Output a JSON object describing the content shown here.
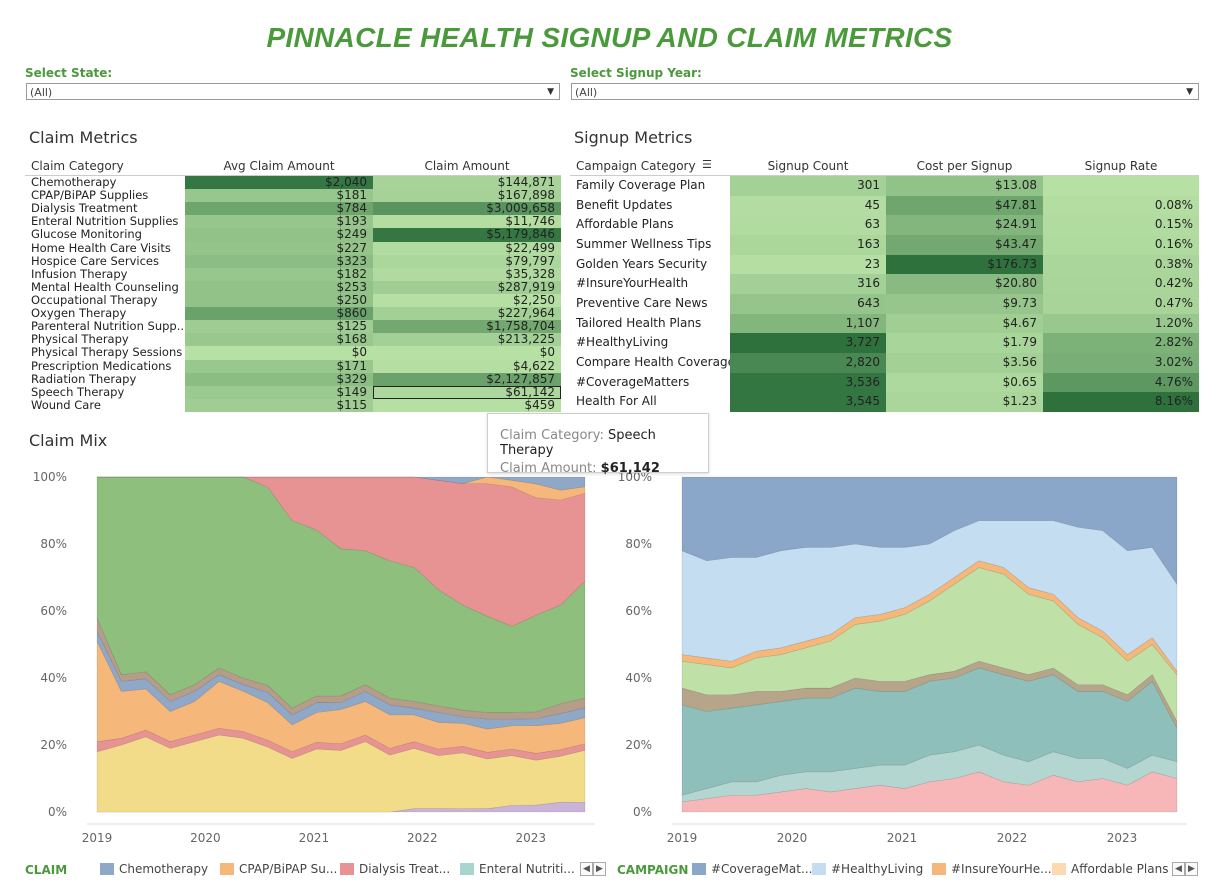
{
  "title": "PINNACLE HEALTH SIGNUP AND CLAIM METRICS",
  "filters": {
    "state_label": "Select State:",
    "state_value": "(All)",
    "year_label": "Select Signup Year:",
    "year_value": "(All)"
  },
  "claim_metrics": {
    "title": "Claim Metrics",
    "headers": [
      "Claim Category",
      "Avg Claim Amount",
      "Claim Amount"
    ],
    "rows": [
      {
        "category": "Chemotherapy",
        "avg": "$2,040",
        "amount": "$144,871",
        "avg_value": 2040,
        "amount_value": 144871
      },
      {
        "category": "CPAP/BiPAP Supplies",
        "avg": "$181",
        "amount": "$167,898",
        "avg_value": 181,
        "amount_value": 167898
      },
      {
        "category": "Dialysis Treatment",
        "avg": "$784",
        "amount": "$3,009,658",
        "avg_value": 784,
        "amount_value": 3009658
      },
      {
        "category": "Enteral Nutrition Supplies",
        "avg": "$193",
        "amount": "$11,746",
        "avg_value": 193,
        "amount_value": 11746
      },
      {
        "category": "Glucose Monitoring",
        "avg": "$249",
        "amount": "$5,179,846",
        "avg_value": 249,
        "amount_value": 5179846
      },
      {
        "category": "Home Health Care Visits",
        "avg": "$227",
        "amount": "$22,499",
        "avg_value": 227,
        "amount_value": 22499
      },
      {
        "category": "Hospice Care Services",
        "avg": "$323",
        "amount": "$79,797",
        "avg_value": 323,
        "amount_value": 79797
      },
      {
        "category": "Infusion Therapy",
        "avg": "$182",
        "amount": "$35,328",
        "avg_value": 182,
        "amount_value": 35328
      },
      {
        "category": "Mental Health Counseling",
        "avg": "$253",
        "amount": "$287,919",
        "avg_value": 253,
        "amount_value": 287919
      },
      {
        "category": "Occupational Therapy",
        "avg": "$250",
        "amount": "$2,250",
        "avg_value": 250,
        "amount_value": 2250
      },
      {
        "category": "Oxygen Therapy",
        "avg": "$860",
        "amount": "$227,964",
        "avg_value": 860,
        "amount_value": 227964
      },
      {
        "category": "Parenteral Nutrition Supp..",
        "avg": "$125",
        "amount": "$1,758,704",
        "avg_value": 125,
        "amount_value": 1758704
      },
      {
        "category": "Physical Therapy",
        "avg": "$168",
        "amount": "$213,225",
        "avg_value": 168,
        "amount_value": 213225
      },
      {
        "category": "Physical Therapy Sessions",
        "avg": "$0",
        "amount": "$0",
        "avg_value": 0,
        "amount_value": 0
      },
      {
        "category": "Prescription Medications",
        "avg": "$171",
        "amount": "$4,622",
        "avg_value": 171,
        "amount_value": 4622
      },
      {
        "category": "Radiation Therapy",
        "avg": "$329",
        "amount": "$2,127,857",
        "avg_value": 329,
        "amount_value": 2127857
      },
      {
        "category": "Speech Therapy",
        "avg": "$149",
        "amount": "$61,142",
        "avg_value": 149,
        "amount_value": 61142
      },
      {
        "category": "Wound Care",
        "avg": "$115",
        "amount": "$459",
        "avg_value": 115,
        "amount_value": 459
      }
    ]
  },
  "signup_metrics": {
    "title": "Signup Metrics",
    "headers": [
      "Campaign Category",
      "Signup Count",
      "Cost per Signup",
      "Signup Rate"
    ],
    "rows": [
      {
        "campaign": "Family Coverage Plan",
        "count": "301",
        "cost": "$13.08",
        "rate": "",
        "count_value": 301,
        "cost_value": 13.08,
        "rate_value": null
      },
      {
        "campaign": "Benefit Updates",
        "count": "45",
        "cost": "$47.81",
        "rate": "0.08%",
        "count_value": 45,
        "cost_value": 47.81,
        "rate_value": 0.08
      },
      {
        "campaign": "Affordable Plans",
        "count": "63",
        "cost": "$24.91",
        "rate": "0.15%",
        "count_value": 63,
        "cost_value": 24.91,
        "rate_value": 0.15
      },
      {
        "campaign": "Summer Wellness Tips",
        "count": "163",
        "cost": "$43.47",
        "rate": "0.16%",
        "count_value": 163,
        "cost_value": 43.47,
        "rate_value": 0.16
      },
      {
        "campaign": "Golden Years Security",
        "count": "23",
        "cost": "$176.73",
        "rate": "0.38%",
        "count_value": 23,
        "cost_value": 176.73,
        "rate_value": 0.38
      },
      {
        "campaign": "#InsureYourHealth",
        "count": "316",
        "cost": "$20.80",
        "rate": "0.42%",
        "count_value": 316,
        "cost_value": 20.8,
        "rate_value": 0.42
      },
      {
        "campaign": "Preventive Care News",
        "count": "643",
        "cost": "$9.73",
        "rate": "0.47%",
        "count_value": 643,
        "cost_value": 9.73,
        "rate_value": 0.47
      },
      {
        "campaign": "Tailored Health Plans",
        "count": "1,107",
        "cost": "$4.67",
        "rate": "1.20%",
        "count_value": 1107,
        "cost_value": 4.67,
        "rate_value": 1.2
      },
      {
        "campaign": "#HealthyLiving",
        "count": "3,727",
        "cost": "$1.79",
        "rate": "2.82%",
        "count_value": 3727,
        "cost_value": 1.79,
        "rate_value": 2.82
      },
      {
        "campaign": "Compare Health Coverage",
        "count": "2,820",
        "cost": "$3.56",
        "rate": "3.02%",
        "count_value": 2820,
        "cost_value": 3.56,
        "rate_value": 3.02
      },
      {
        "campaign": "#CoverageMatters",
        "count": "3,536",
        "cost": "$0.65",
        "rate": "4.76%",
        "count_value": 3536,
        "cost_value": 0.65,
        "rate_value": 4.76
      },
      {
        "campaign": "Health For All",
        "count": "3,545",
        "cost": "$1.23",
        "rate": "8.16%",
        "count_value": 3545,
        "cost_value": 1.23,
        "rate_value": 8.16
      }
    ]
  },
  "tooltip": {
    "cat_key": "Claim Category:",
    "cat_val": "Speech Therapy",
    "amt_key": "Claim Amount:",
    "amt_val": "$61,142"
  },
  "claim_mix": {
    "title": "Claim Mix",
    "legend_title": "CLAIM",
    "legend": [
      {
        "label": "Chemotherapy",
        "color": "#8fa8c8"
      },
      {
        "label": "CPAP/BiPAP Su...",
        "color": "#f5b87a"
      },
      {
        "label": "Dialysis Treat...",
        "color": "#e89393"
      },
      {
        "label": "Enteral Nutriti...",
        "color": "#a8d5d0"
      }
    ]
  },
  "campaign_legend": {
    "legend_title": "CAMPAIGN",
    "legend": [
      {
        "label": "#CoverageMat...",
        "color": "#8aa7c9"
      },
      {
        "label": "#HealthyLiving",
        "color": "#c4ddf0"
      },
      {
        "label": "#InsureYourHe...",
        "color": "#f5b87a"
      },
      {
        "label": "Affordable Plans",
        "color": "#fdd9b0"
      }
    ]
  },
  "chart_data": [
    {
      "type": "area",
      "title": "Claim Mix",
      "x_ticks": [
        "2019",
        "2020",
        "2021",
        "2022",
        "2023"
      ],
      "y_ticks": [
        "0%",
        "20%",
        "40%",
        "60%",
        "80%",
        "100%"
      ],
      "ylim": [
        0,
        100
      ],
      "stacked_percent": true,
      "series": [
        {
          "name": "Chemotherapy",
          "color": "#8fa8c8"
        },
        {
          "name": "CPAP/BiPAP Su...",
          "color": "#f5b87a"
        },
        {
          "name": "Dialysis Treat...",
          "color": "#e89393"
        },
        {
          "name": "Enteral Nutriti...",
          "color": "#a8d5d0"
        }
      ],
      "bands": [
        {
          "color": "#c9b3d8",
          "values": [
            0,
            0,
            0,
            0,
            0,
            0,
            0,
            0,
            0,
            0,
            0,
            0,
            0,
            1,
            1,
            1,
            1,
            2,
            2,
            3,
            3
          ]
        },
        {
          "color": "#f2dc8a",
          "values": [
            18,
            20,
            22,
            19,
            21,
            23,
            22,
            19,
            16,
            19,
            18,
            21,
            17,
            18,
            16,
            17,
            15,
            15,
            13,
            14,
            16
          ]
        },
        {
          "color": "#e89393",
          "values": [
            3,
            2,
            2,
            2,
            2,
            2,
            2,
            2,
            2,
            2,
            2,
            2,
            2,
            2,
            2,
            2,
            2,
            2,
            2,
            2,
            2
          ]
        },
        {
          "color": "#f5b87a",
          "values": [
            30,
            14,
            12,
            9,
            10,
            14,
            12,
            11,
            8,
            9,
            10,
            10,
            10,
            8,
            8,
            7,
            7,
            7,
            8,
            8,
            8
          ]
        },
        {
          "color": "#8fa8c8",
          "values": [
            3,
            3,
            3,
            3,
            3,
            2,
            2,
            3,
            3,
            3,
            2,
            3,
            3,
            2,
            3,
            2,
            3,
            2,
            2,
            3,
            3
          ]
        },
        {
          "color": "#b59d8a",
          "values": [
            4,
            2,
            2,
            2,
            2,
            2,
            2,
            2,
            2,
            2,
            2,
            2,
            2,
            2,
            2,
            2,
            2,
            2,
            2,
            3,
            3
          ]
        },
        {
          "color": "#8fbf7c",
          "values": [
            42,
            59,
            57,
            65,
            62,
            57,
            60,
            58,
            56,
            50,
            43,
            40,
            41,
            40,
            35,
            32,
            29,
            26,
            28,
            30,
            36
          ]
        },
        {
          "color": "#e89393",
          "values": [
            0,
            0,
            0,
            0,
            0,
            0,
            0,
            3,
            13,
            16,
            21,
            22,
            25,
            27,
            33,
            37,
            40,
            42,
            34,
            32,
            27
          ]
        },
        {
          "color": "#f5b87a",
          "values": [
            0,
            0,
            0,
            0,
            0,
            0,
            0,
            0,
            0,
            0,
            0,
            0,
            0,
            0,
            0,
            0,
            2,
            2,
            4,
            3,
            2
          ]
        },
        {
          "color": "#8fa8c8",
          "values": [
            0,
            0,
            0,
            0,
            0,
            0,
            0,
            0,
            0,
            0,
            0,
            0,
            0,
            0,
            1,
            2,
            0,
            1,
            2,
            4,
            3
          ]
        }
      ]
    },
    {
      "type": "area",
      "title": "",
      "x_ticks": [
        "2019",
        "2020",
        "2021",
        "2022",
        "2023"
      ],
      "y_ticks": [
        "0%",
        "20%",
        "40%",
        "60%",
        "80%",
        "100%"
      ],
      "ylim": [
        0,
        100
      ],
      "stacked_percent": true,
      "series": [
        {
          "name": "#CoverageMat...",
          "color": "#8aa7c9"
        },
        {
          "name": "#HealthyLiving",
          "color": "#c4ddf0"
        },
        {
          "name": "#InsureYourHe...",
          "color": "#f5b87a"
        },
        {
          "name": "Affordable Plans",
          "color": "#fdd9b0"
        }
      ],
      "bands": [
        {
          "color": "#f7b7b8",
          "values": [
            3,
            4,
            5,
            5,
            6,
            7,
            6,
            7,
            8,
            7,
            9,
            10,
            12,
            9,
            8,
            11,
            9,
            10,
            8,
            12,
            10
          ]
        },
        {
          "color": "#b3d6d1",
          "values": [
            2,
            3,
            4,
            4,
            5,
            5,
            6,
            6,
            6,
            7,
            8,
            8,
            8,
            8,
            7,
            7,
            7,
            6,
            5,
            5,
            5
          ]
        },
        {
          "color": "#8ebfba",
          "values": [
            27,
            23,
            22,
            23,
            22,
            22,
            22,
            24,
            22,
            22,
            22,
            22,
            23,
            24,
            24,
            23,
            20,
            20,
            20,
            22,
            10
          ]
        },
        {
          "color": "#b7a58a",
          "values": [
            5,
            5,
            4,
            4,
            3,
            3,
            3,
            3,
            3,
            3,
            2,
            2,
            2,
            2,
            2,
            2,
            2,
            2,
            2,
            2,
            2
          ]
        },
        {
          "color": "#bfe1a8",
          "values": [
            8,
            9,
            8,
            10,
            11,
            12,
            14,
            16,
            18,
            20,
            22,
            26,
            28,
            28,
            24,
            20,
            18,
            14,
            10,
            9,
            14
          ]
        },
        {
          "color": "#f5b87a",
          "values": [
            2,
            2,
            2,
            2,
            2,
            2,
            2,
            2,
            2,
            2,
            2,
            2,
            2,
            2,
            2,
            2,
            2,
            2,
            2,
            2,
            1
          ]
        },
        {
          "color": "#c4ddf0",
          "values": [
            31,
            29,
            31,
            28,
            29,
            28,
            26,
            22,
            20,
            18,
            15,
            14,
            12,
            14,
            20,
            22,
            27,
            30,
            31,
            27,
            26
          ]
        },
        {
          "color": "#8aa7c9",
          "values": [
            22,
            25,
            24,
            24,
            22,
            21,
            21,
            20,
            21,
            21,
            20,
            16,
            13,
            13,
            13,
            13,
            15,
            16,
            22,
            21,
            32
          ]
        }
      ]
    }
  ]
}
